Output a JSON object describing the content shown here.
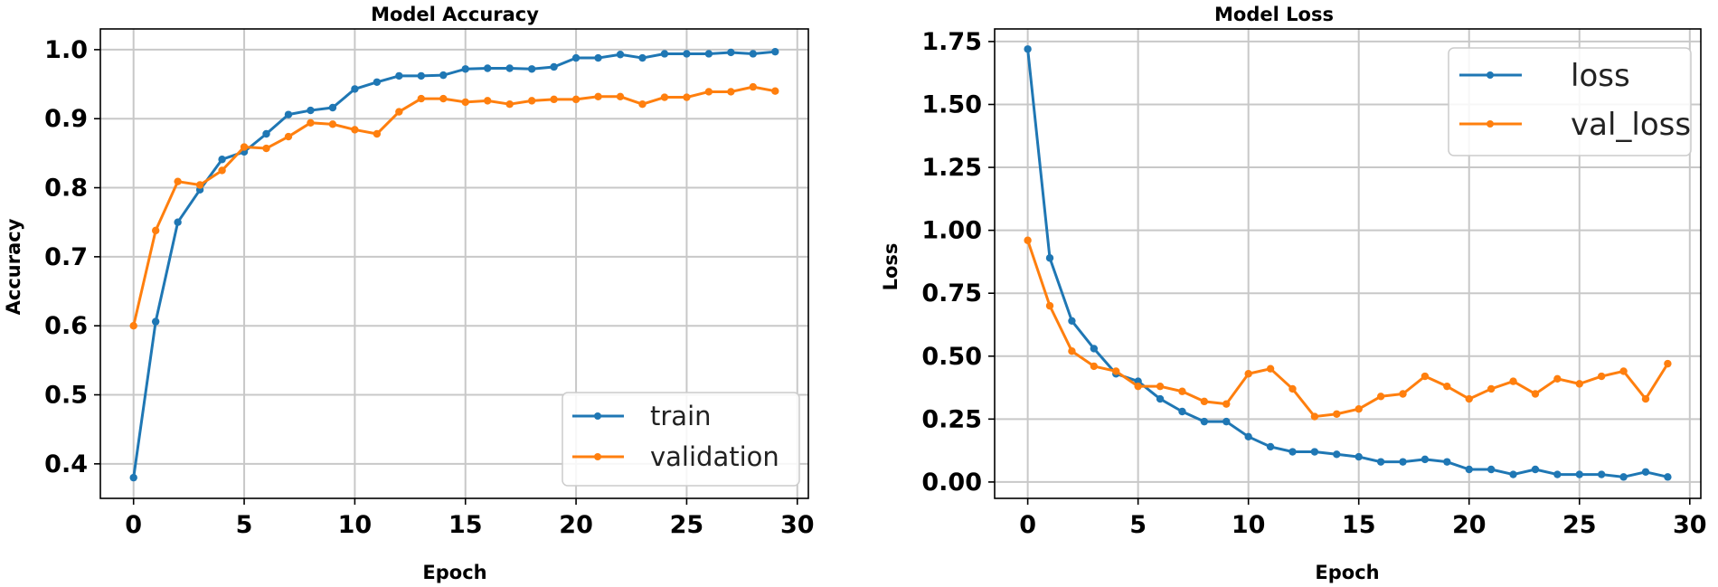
{
  "chart_data": [
    {
      "type": "line",
      "title": "Model Accuracy",
      "xlabel": "Epoch",
      "ylabel": "Accuracy",
      "xlim": [
        -1.5,
        30.5
      ],
      "ylim": [
        0.35,
        1.03
      ],
      "xticks": [
        0,
        5,
        10,
        15,
        20,
        25,
        30
      ],
      "yticks": [
        0.4,
        0.5,
        0.6,
        0.7,
        0.8,
        0.9,
        1.0
      ],
      "ytick_labels": [
        "0.4",
        "0.5",
        "0.6",
        "0.7",
        "0.8",
        "0.9",
        "1.0"
      ],
      "grid": true,
      "legend_position": "lower-right",
      "x": [
        0,
        1,
        2,
        3,
        4,
        5,
        6,
        7,
        8,
        9,
        10,
        11,
        12,
        13,
        14,
        15,
        16,
        17,
        18,
        19,
        20,
        21,
        22,
        23,
        24,
        25,
        26,
        27,
        28,
        29
      ],
      "series": [
        {
          "name": "train",
          "color": "#1f77b4",
          "values": [
            0.38,
            0.606,
            0.75,
            0.797,
            0.841,
            0.852,
            0.878,
            0.906,
            0.912,
            0.916,
            0.943,
            0.953,
            0.962,
            0.962,
            0.963,
            0.972,
            0.973,
            0.973,
            0.972,
            0.975,
            0.988,
            0.988,
            0.993,
            0.988,
            0.994,
            0.994,
            0.994,
            0.996,
            0.994,
            0.997
          ]
        },
        {
          "name": "validation",
          "color": "#ff7f0e",
          "values": [
            0.6,
            0.738,
            0.809,
            0.804,
            0.825,
            0.859,
            0.857,
            0.874,
            0.894,
            0.892,
            0.884,
            0.878,
            0.91,
            0.929,
            0.929,
            0.924,
            0.926,
            0.921,
            0.926,
            0.928,
            0.928,
            0.932,
            0.932,
            0.921,
            0.931,
            0.931,
            0.939,
            0.939,
            0.946,
            0.94
          ]
        }
      ]
    },
    {
      "type": "line",
      "title": "Model Loss",
      "xlabel": "Epoch",
      "ylabel": "Loss",
      "xlim": [
        -1.5,
        30.5
      ],
      "ylim": [
        -0.065,
        1.8
      ],
      "xticks": [
        0,
        5,
        10,
        15,
        20,
        25,
        30
      ],
      "yticks": [
        0.0,
        0.25,
        0.5,
        0.75,
        1.0,
        1.25,
        1.5,
        1.75
      ],
      "ytick_labels": [
        "0.00",
        "0.25",
        "0.50",
        "0.75",
        "1.00",
        "1.25",
        "1.50",
        "1.75"
      ],
      "grid": true,
      "legend_position": "upper-right",
      "x": [
        0,
        1,
        2,
        3,
        4,
        5,
        6,
        7,
        8,
        9,
        10,
        11,
        12,
        13,
        14,
        15,
        16,
        17,
        18,
        19,
        20,
        21,
        22,
        23,
        24,
        25,
        26,
        27,
        28,
        29
      ],
      "series": [
        {
          "name": "loss",
          "color": "#1f77b4",
          "values": [
            1.72,
            0.89,
            0.64,
            0.53,
            0.43,
            0.4,
            0.33,
            0.28,
            0.24,
            0.24,
            0.18,
            0.14,
            0.12,
            0.12,
            0.11,
            0.1,
            0.08,
            0.08,
            0.09,
            0.08,
            0.05,
            0.05,
            0.03,
            0.05,
            0.03,
            0.03,
            0.03,
            0.02,
            0.04,
            0.02
          ]
        },
        {
          "name": "val_loss",
          "color": "#ff7f0e",
          "values": [
            0.96,
            0.7,
            0.52,
            0.46,
            0.44,
            0.38,
            0.38,
            0.36,
            0.32,
            0.31,
            0.43,
            0.45,
            0.37,
            0.26,
            0.27,
            0.29,
            0.34,
            0.35,
            0.42,
            0.38,
            0.33,
            0.37,
            0.4,
            0.35,
            0.41,
            0.39,
            0.42,
            0.44,
            0.33,
            0.47
          ]
        }
      ]
    }
  ]
}
